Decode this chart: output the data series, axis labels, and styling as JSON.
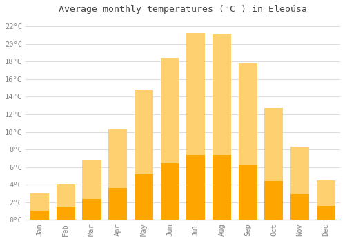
{
  "title": "Average monthly temperatures (°C ) in Eleoúsa",
  "months": [
    "Jan",
    "Feb",
    "Mar",
    "Apr",
    "May",
    "Jun",
    "Jul",
    "Aug",
    "Sep",
    "Oct",
    "Nov",
    "Dec"
  ],
  "values": [
    3.0,
    4.1,
    6.8,
    10.3,
    14.8,
    18.4,
    21.2,
    21.1,
    17.8,
    12.7,
    8.3,
    4.5
  ],
  "bar_color": "#FFA500",
  "bar_color_light": "#FFD070",
  "ylim": [
    0,
    23
  ],
  "yticks": [
    0,
    2,
    4,
    6,
    8,
    10,
    12,
    14,
    16,
    18,
    20,
    22
  ],
  "background_color": "#FFFFFF",
  "plot_bg_color": "#FFFFFF",
  "grid_color": "#DDDDDD",
  "title_fontsize": 9.5,
  "tick_fontsize": 7.5,
  "tick_color": "#888888",
  "font_family": "monospace"
}
